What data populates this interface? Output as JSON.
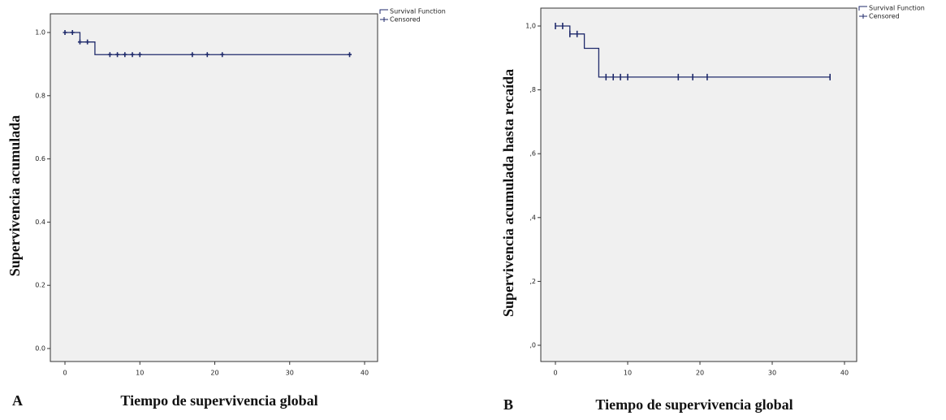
{
  "chart_data": [
    {
      "type": "step",
      "panel_label": "A",
      "x_label": "Tiempo de supervivencia global",
      "y_label": "Supervivencia acumulada",
      "xlim": [
        0,
        40
      ],
      "xticks": [
        0,
        10,
        20,
        30,
        40
      ],
      "ylim": [
        0,
        1
      ],
      "yticks": [
        {
          "value": 0,
          "label": "0.0"
        },
        0.2,
        0.4,
        0.6,
        0.8,
        {
          "value": 1,
          "label": "1.0"
        }
      ],
      "grid": false,
      "legend": "right",
      "series": [
        {
          "name": "Survival Function",
          "color": "#1f2a6b",
          "x": [
            0,
            2,
            4,
            38
          ],
          "values": [
            1,
            0.97,
            0.93,
            0.93
          ]
        },
        {
          "name": "Censored",
          "color": "#1f2a6b",
          "marker": "plus",
          "x": [
            0,
            1,
            2,
            3,
            6,
            7,
            8,
            9,
            10,
            17,
            19,
            21,
            38
          ],
          "values": [
            1,
            1,
            0.97,
            0.97,
            0.93,
            0.93,
            0.93,
            0.93,
            0.93,
            0.93,
            0.93,
            0.93,
            0.93
          ]
        }
      ]
    },
    {
      "type": "step",
      "panel_label": "B",
      "x_label": "Tiempo de supervivencia global",
      "y_label": "Supervivencia acumulada hasta recaída",
      "xlim": [
        0,
        40
      ],
      "xticks": [
        0,
        10,
        20,
        30,
        40
      ],
      "ylim": [
        0,
        1
      ],
      "yticks": [
        {
          "value": 0,
          "label": ",0"
        },
        {
          "value": 0.2,
          "label": ",2"
        },
        {
          "value": 0.4,
          "label": ",4"
        },
        {
          "value": 0.6,
          "label": ",6"
        },
        {
          "value": 0.8,
          "label": ",8"
        },
        {
          "value": 1,
          "label": "1,0"
        }
      ],
      "grid": false,
      "legend": "right",
      "series": [
        {
          "name": "Survival Function",
          "color": "#1f2a6b",
          "x": [
            0,
            2,
            4,
            6,
            38
          ],
          "values": [
            1,
            0.975,
            0.93,
            0.84,
            0.84
          ]
        },
        {
          "name": "Censored",
          "color": "#1f2a6b",
          "marker": "tick",
          "x": [
            0,
            1,
            2,
            3,
            7,
            8,
            9,
            10,
            17,
            19,
            21,
            38
          ],
          "values": [
            1,
            1,
            0.975,
            0.975,
            0.84,
            0.84,
            0.84,
            0.84,
            0.84,
            0.84,
            0.84,
            0.84
          ]
        }
      ]
    }
  ]
}
